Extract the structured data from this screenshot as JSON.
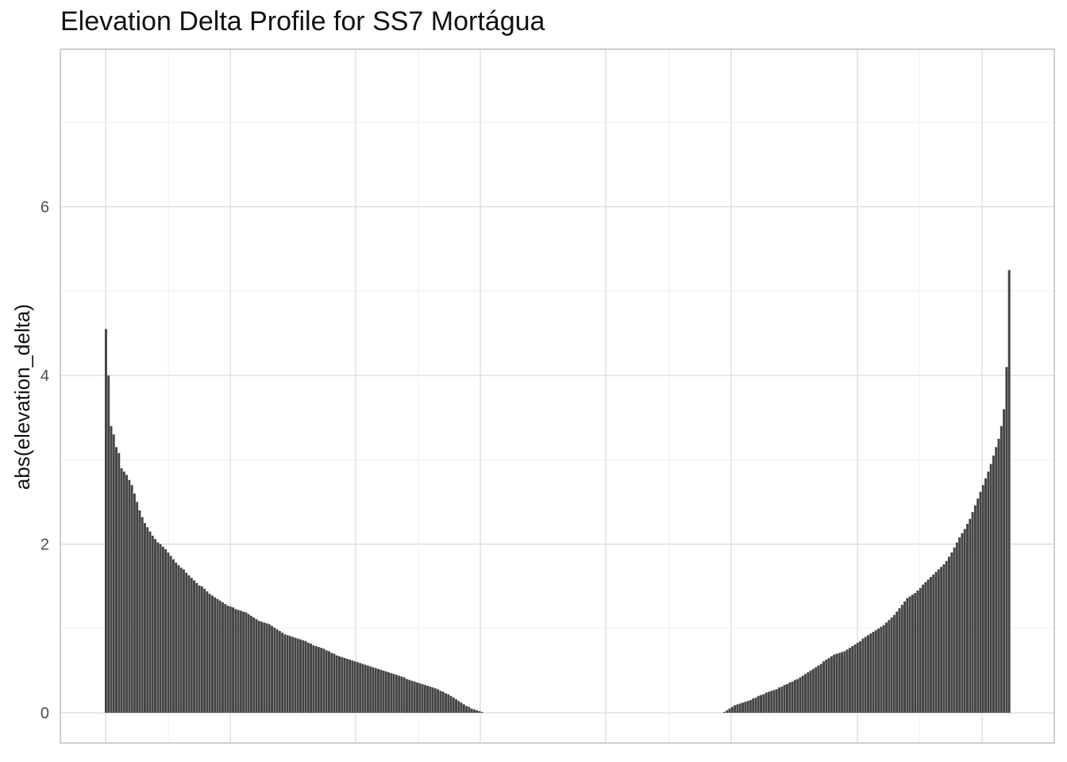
{
  "chart_data": {
    "type": "bar",
    "title": "Elevation Delta Profile for SS7 Mortágua",
    "xlabel": "",
    "ylabel": "abs(elevation_delta)",
    "ylim": [
      -0.35,
      7.9
    ],
    "y_ticks": [
      0,
      2,
      4,
      6
    ],
    "y_tick_labels": [
      "0",
      "2",
      "4",
      "6"
    ],
    "x_tick_labels": [],
    "grid": true,
    "legend": "none",
    "bar_color": "#444444",
    "left_segment": {
      "description_values": "sorted absolute elevation deltas, descending",
      "values": [
        4.55,
        4.0,
        3.4,
        3.3,
        3.15,
        3.08,
        2.9,
        2.86,
        2.82,
        2.76,
        2.7,
        2.6,
        2.5,
        2.4,
        2.32,
        2.25,
        2.2,
        2.15,
        2.1,
        2.06,
        2.02,
        2.0,
        1.97,
        1.94,
        1.9,
        1.86,
        1.82,
        1.78,
        1.75,
        1.72,
        1.7,
        1.66,
        1.63,
        1.6,
        1.57,
        1.54,
        1.51,
        1.5,
        1.47,
        1.44,
        1.41,
        1.39,
        1.37,
        1.35,
        1.33,
        1.31,
        1.29,
        1.27,
        1.26,
        1.25,
        1.23,
        1.22,
        1.21,
        1.2,
        1.19,
        1.17,
        1.15,
        1.13,
        1.11,
        1.09,
        1.08,
        1.07,
        1.06,
        1.05,
        1.03,
        1.01,
        0.99,
        0.97,
        0.95,
        0.93,
        0.92,
        0.91,
        0.9,
        0.89,
        0.88,
        0.87,
        0.86,
        0.85,
        0.83,
        0.82,
        0.8,
        0.79,
        0.78,
        0.77,
        0.76,
        0.74,
        0.73,
        0.71,
        0.7,
        0.68,
        0.67,
        0.66,
        0.65,
        0.64,
        0.63,
        0.62,
        0.61,
        0.6,
        0.59,
        0.58,
        0.57,
        0.56,
        0.55,
        0.54,
        0.53,
        0.52,
        0.51,
        0.5,
        0.49,
        0.48,
        0.47,
        0.46,
        0.45,
        0.44,
        0.43,
        0.42,
        0.4,
        0.39,
        0.38,
        0.37,
        0.36,
        0.35,
        0.34,
        0.33,
        0.32,
        0.31,
        0.3,
        0.29,
        0.28,
        0.26,
        0.25,
        0.23,
        0.22,
        0.2,
        0.18,
        0.16,
        0.14,
        0.12,
        0.1,
        0.08,
        0.07,
        0.05,
        0.04,
        0.03,
        0.02,
        0.01
      ]
    },
    "right_segment": {
      "description_values": "sorted absolute elevation deltas, ascending",
      "values": [
        0.01,
        0.03,
        0.05,
        0.07,
        0.09,
        0.1,
        0.11,
        0.12,
        0.13,
        0.14,
        0.15,
        0.17,
        0.18,
        0.2,
        0.21,
        0.22,
        0.24,
        0.25,
        0.26,
        0.27,
        0.28,
        0.3,
        0.31,
        0.33,
        0.34,
        0.36,
        0.37,
        0.39,
        0.4,
        0.42,
        0.44,
        0.46,
        0.48,
        0.5,
        0.52,
        0.54,
        0.56,
        0.58,
        0.61,
        0.63,
        0.65,
        0.67,
        0.69,
        0.7,
        0.71,
        0.72,
        0.73,
        0.75,
        0.77,
        0.79,
        0.81,
        0.83,
        0.85,
        0.88,
        0.9,
        0.92,
        0.94,
        0.96,
        0.98,
        1.0,
        1.02,
        1.04,
        1.07,
        1.1,
        1.13,
        1.16,
        1.2,
        1.24,
        1.28,
        1.32,
        1.36,
        1.38,
        1.4,
        1.42,
        1.45,
        1.48,
        1.52,
        1.55,
        1.58,
        1.61,
        1.64,
        1.67,
        1.7,
        1.73,
        1.76,
        1.8,
        1.85,
        1.9,
        1.96,
        2.02,
        2.08,
        2.13,
        2.18,
        2.24,
        2.3,
        2.38,
        2.46,
        2.54,
        2.62,
        2.7,
        2.78,
        2.86,
        2.95,
        3.05,
        3.15,
        3.25,
        3.4,
        3.6,
        4.1,
        5.25
      ]
    }
  }
}
